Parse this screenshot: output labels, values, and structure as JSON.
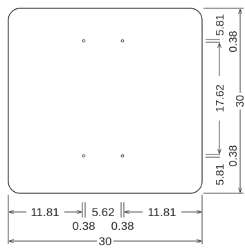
{
  "drawing": {
    "horizontal": {
      "left_segment": "11.81",
      "middle_segment": "5.62",
      "right_segment": "11.81",
      "left_hole": "0.38",
      "right_hole": "0.38",
      "overall": "30"
    },
    "vertical": {
      "top_segment": "5.81",
      "top_hole": "0.38",
      "middle_segment": "17.62",
      "bottom_hole": "0.38",
      "bottom_segment": "5.81",
      "overall": "30"
    }
  }
}
